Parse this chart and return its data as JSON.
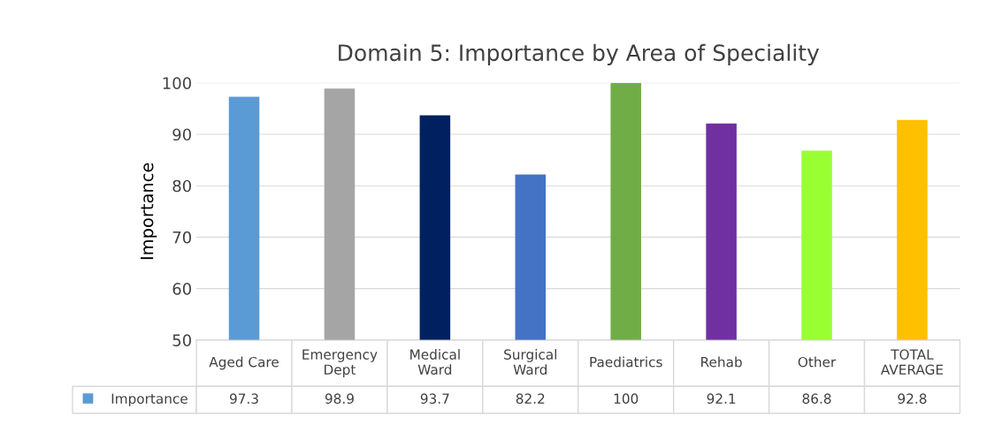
{
  "chart_data": {
    "type": "bar",
    "title": "Domain 5: Importance by Area of Speciality",
    "ylabel": "Importance",
    "categories": [
      "Aged Care",
      "Emergency Dept",
      "Medical Ward",
      "Surgical Ward",
      "Paediatrics",
      "Rehab",
      "Other",
      "TOTAL AVERAGE"
    ],
    "series": [
      {
        "name": "Importance",
        "color": "#5b9bd5",
        "values": [
          97.3,
          98.9,
          93.7,
          82.2,
          100,
          92.1,
          86.8,
          92.8
        ],
        "colors": [
          "#5b9bd5",
          "#a5a5a5",
          "#002060",
          "#4472c4",
          "#70ad47",
          "#7030a0",
          "#99ff33",
          "#ffc000"
        ]
      }
    ],
    "ylim": [
      50,
      100
    ],
    "yticks": [
      50,
      60,
      70,
      80,
      90,
      100
    ],
    "grid": "y",
    "data_labels": true,
    "legend": "bottom"
  }
}
